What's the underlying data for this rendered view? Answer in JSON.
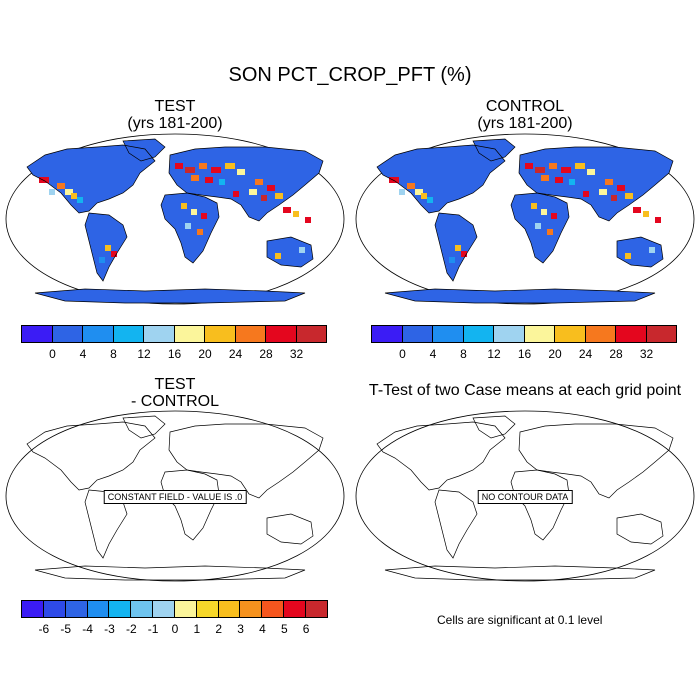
{
  "title": "SON PCT_CROP_PFT (%)",
  "panels": {
    "test": {
      "title": "TEST",
      "subtitle": "(yrs 181-200)"
    },
    "control": {
      "title": "CONTROL",
      "subtitle": "(yrs 181-200)"
    },
    "diff": {
      "title": "TEST",
      "subtitle": "- CONTROL",
      "notice": "CONSTANT FIELD - VALUE IS .0"
    },
    "ttest": {
      "title": "T-Test of two Case means at each grid point",
      "notice": "NO CONTOUR DATA",
      "footnote": "Cells are significant at 0.1 level"
    }
  },
  "colorbar_main": {
    "labels": [
      "0",
      "4",
      "8",
      "12",
      "16",
      "20",
      "24",
      "28",
      "32"
    ],
    "colors": [
      "#3b1cf5",
      "#2e64e5",
      "#1f8ef0",
      "#13b4f0",
      "#9fd3f0",
      "#fbf59b",
      "#f8be1e",
      "#f6781e",
      "#e4061e",
      "#c8282d"
    ]
  },
  "colorbar_diff": {
    "labels": [
      "-6",
      "-5",
      "-4",
      "-3",
      "-2",
      "-1",
      "0",
      "1",
      "2",
      "3",
      "4",
      "5",
      "6"
    ],
    "colors": [
      "#3b1cf5",
      "#2e4ae8",
      "#2e64e5",
      "#1f8ef0",
      "#13b4f0",
      "#6ec4ef",
      "#9fd3f0",
      "#fbf59b",
      "#f6d72a",
      "#f8be1e",
      "#f6921e",
      "#f6561e",
      "#e4061e",
      "#c8282d"
    ]
  }
}
